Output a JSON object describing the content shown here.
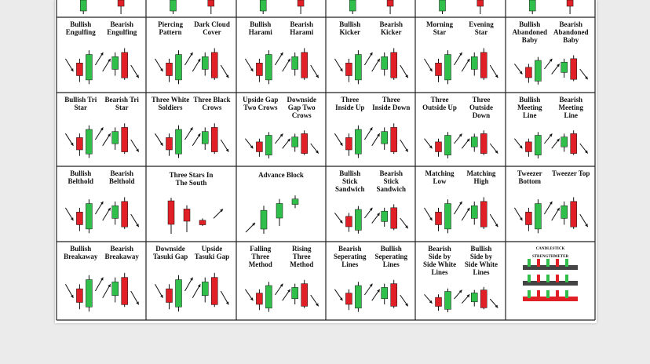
{
  "poster": {
    "colors": {
      "bull": "#2fbf4a",
      "bear": "#e01f26",
      "wick": "#111111",
      "grid": "#222222"
    },
    "top_strip": [
      {
        "type": "g"
      },
      {
        "type": "r"
      },
      {
        "type": "g"
      },
      {
        "type": "r"
      },
      {
        "type": "g"
      },
      {
        "type": "r"
      },
      {
        "type": "g"
      },
      {
        "type": "r"
      },
      {
        "type": "g"
      },
      {
        "type": "r"
      },
      {
        "type": "g"
      },
      {
        "type": "r"
      },
      {
        "type": "g"
      },
      {
        "type": "r"
      }
    ],
    "cells": [
      {
        "left": "Bullish Engulfing",
        "right": "Bearish Engulfing"
      },
      {
        "left": "Piercing Pattern",
        "right": "Dark Cloud Cover"
      },
      {
        "left": "Bullish Harami",
        "right": "Bearish Harami"
      },
      {
        "left": "Bullish Kicker",
        "right": "Bearish Kicker"
      },
      {
        "left": "Morning Star",
        "right": "Evening Star"
      },
      {
        "left": "Bullish Abandoned Baby",
        "right": "Bearish Abandoned Baby"
      },
      {
        "left": "Bullish Tri Star",
        "right": "Bearish Tri Star"
      },
      {
        "left": "Three White Soldiers",
        "right": "Three Black Crows"
      },
      {
        "left": "Upside Gap Two Crows",
        "right": "Downside Gap Two Crows"
      },
      {
        "left": "Three Inside Up",
        "right": "Three Inside Down"
      },
      {
        "left": "Three Outside Up",
        "right": "Three Outside Down"
      },
      {
        "left": "Bullish Meeting Line",
        "right": "Bearish Meeting Line"
      },
      {
        "left": "Bullish Belthold",
        "right": "Bearish Belthold"
      },
      {
        "center": "Three Stars In The South"
      },
      {
        "center": "Advance Block"
      },
      {
        "left": "Bullish Stick Sandwich",
        "right": "Bearish Stick Sandwich"
      },
      {
        "left": "Matching Low",
        "right": "Matching High"
      },
      {
        "left": "Tweezer Bottom",
        "right": "Tweezer Top"
      },
      {
        "left": "Bullish Breakaway",
        "right": "Bearish Breakaway"
      },
      {
        "left": "Downside Tasuki Gap",
        "right": "Upside Tasuki Gap"
      },
      {
        "left": "Falling Three Method",
        "right": "Rising Three Method"
      },
      {
        "left": "Bearish Seperating Lines",
        "right": "Bullish Seperating Lines"
      },
      {
        "left": "Bearish Side by Side White Lines",
        "right": "Bullish Side by Side White Lines"
      },
      {
        "center": "CANDLESTICK STRENGTHMETER"
      }
    ]
  }
}
